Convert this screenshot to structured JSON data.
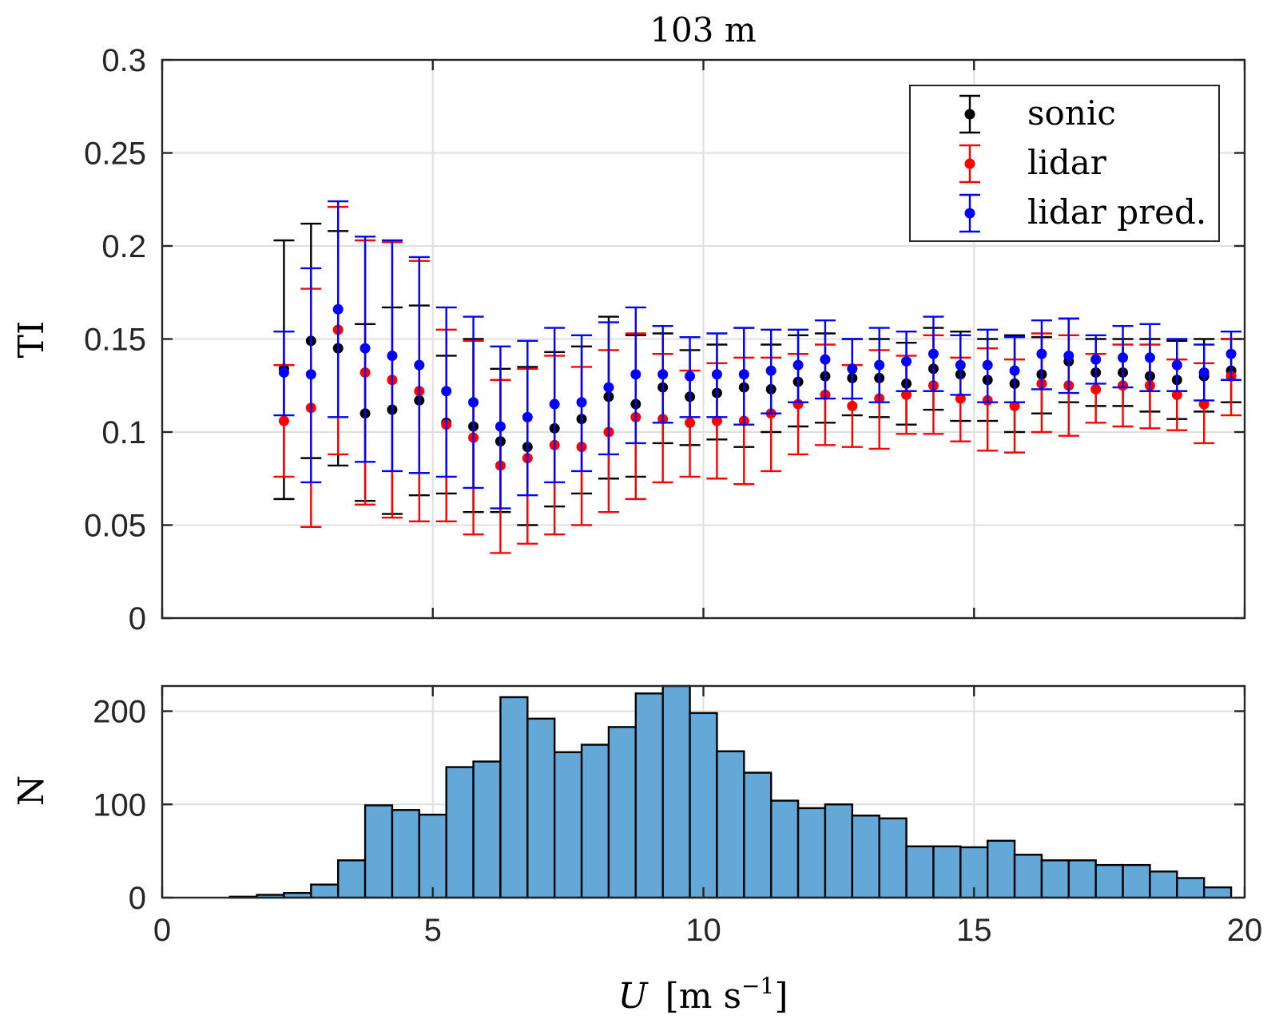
{
  "chart_data": [
    {
      "type": "scatter",
      "subtype": "errorbar",
      "title": "103 m",
      "xlabel": "",
      "ylabel": "TI",
      "xlim": [
        0,
        20
      ],
      "ylim": [
        0,
        0.3
      ],
      "xticks": [
        0,
        5,
        10,
        15,
        20
      ],
      "yticks": [
        0,
        0.05,
        0.1,
        0.15,
        0.2,
        0.25,
        0.3
      ],
      "ytick_labels": [
        "0",
        "0.05",
        "0.1",
        "0.15",
        "0.2",
        "0.25",
        "0.3"
      ],
      "grid": true,
      "legend_position": "top-right",
      "x": [
        2.25,
        2.75,
        3.25,
        3.75,
        4.25,
        4.75,
        5.25,
        5.75,
        6.25,
        6.75,
        7.25,
        7.75,
        8.25,
        8.75,
        9.25,
        9.75,
        10.25,
        10.75,
        11.25,
        11.75,
        12.25,
        12.75,
        13.25,
        13.75,
        14.25,
        14.75,
        15.25,
        15.75,
        16.25,
        16.75,
        17.25,
        17.75,
        18.25,
        18.75,
        19.25,
        19.75
      ],
      "series": [
        {
          "name": "sonic",
          "color": "#000000",
          "values": [
            0.134,
            0.149,
            0.145,
            0.11,
            0.112,
            0.117,
            0.105,
            0.103,
            0.095,
            0.092,
            0.102,
            0.107,
            0.119,
            0.115,
            0.124,
            0.119,
            0.121,
            0.124,
            0.123,
            0.127,
            0.13,
            0.129,
            0.129,
            0.126,
            0.134,
            0.131,
            0.128,
            0.126,
            0.131,
            0.138,
            0.132,
            0.132,
            0.13,
            0.128,
            0.13,
            0.133
          ],
          "upper": [
            0.203,
            0.212,
            0.208,
            0.158,
            0.167,
            0.168,
            0.141,
            0.15,
            0.134,
            0.135,
            0.143,
            0.146,
            0.162,
            0.152,
            0.153,
            0.144,
            0.147,
            0.156,
            0.147,
            0.152,
            0.153,
            0.15,
            0.15,
            0.148,
            0.156,
            0.154,
            0.15,
            0.152,
            0.151,
            0.161,
            0.15,
            0.15,
            0.15,
            0.149,
            0.15,
            0.15
          ],
          "lower": [
            0.064,
            0.086,
            0.082,
            0.063,
            0.056,
            0.066,
            0.067,
            0.057,
            0.057,
            0.05,
            0.06,
            0.067,
            0.075,
            0.076,
            0.094,
            0.093,
            0.096,
            0.092,
            0.1,
            0.103,
            0.105,
            0.109,
            0.108,
            0.104,
            0.112,
            0.106,
            0.106,
            0.1,
            0.11,
            0.116,
            0.114,
            0.114,
            0.111,
            0.107,
            0.111,
            0.116
          ]
        },
        {
          "name": "lidar",
          "color": "#ff0000",
          "values": [
            0.106,
            0.113,
            0.155,
            0.132,
            0.128,
            0.122,
            0.104,
            0.097,
            0.082,
            0.086,
            0.093,
            0.092,
            0.1,
            0.108,
            0.107,
            0.105,
            0.106,
            0.106,
            0.11,
            0.115,
            0.12,
            0.114,
            0.118,
            0.12,
            0.125,
            0.118,
            0.117,
            0.114,
            0.126,
            0.125,
            0.123,
            0.125,
            0.125,
            0.12,
            0.115,
            0.13
          ],
          "upper": [
            0.136,
            0.177,
            0.221,
            0.203,
            0.202,
            0.192,
            0.155,
            0.149,
            0.128,
            0.134,
            0.141,
            0.135,
            0.144,
            0.153,
            0.142,
            0.133,
            0.137,
            0.14,
            0.14,
            0.142,
            0.147,
            0.136,
            0.144,
            0.141,
            0.152,
            0.14,
            0.145,
            0.139,
            0.153,
            0.152,
            0.142,
            0.147,
            0.147,
            0.139,
            0.137,
            0.15
          ],
          "lower": [
            0.076,
            0.049,
            0.088,
            0.061,
            0.054,
            0.052,
            0.052,
            0.045,
            0.035,
            0.04,
            0.045,
            0.05,
            0.057,
            0.064,
            0.073,
            0.076,
            0.075,
            0.072,
            0.079,
            0.088,
            0.093,
            0.092,
            0.091,
            0.099,
            0.099,
            0.095,
            0.09,
            0.089,
            0.1,
            0.098,
            0.105,
            0.103,
            0.102,
            0.101,
            0.094,
            0.109
          ]
        },
        {
          "name": "lidar pred.",
          "color": "#0000ff",
          "values": [
            0.132,
            0.131,
            0.166,
            0.145,
            0.141,
            0.136,
            0.122,
            0.116,
            0.103,
            0.108,
            0.115,
            0.116,
            0.124,
            0.131,
            0.131,
            0.13,
            0.131,
            0.131,
            0.133,
            0.136,
            0.139,
            0.134,
            0.136,
            0.138,
            0.142,
            0.136,
            0.136,
            0.133,
            0.142,
            0.141,
            0.139,
            0.14,
            0.14,
            0.136,
            0.132,
            0.142
          ],
          "upper": [
            0.154,
            0.188,
            0.224,
            0.205,
            0.203,
            0.194,
            0.167,
            0.162,
            0.146,
            0.149,
            0.156,
            0.152,
            0.159,
            0.167,
            0.157,
            0.151,
            0.153,
            0.156,
            0.155,
            0.155,
            0.16,
            0.15,
            0.156,
            0.154,
            0.162,
            0.152,
            0.155,
            0.151,
            0.16,
            0.161,
            0.152,
            0.157,
            0.158,
            0.15,
            0.147,
            0.154
          ],
          "lower": [
            0.109,
            0.073,
            0.108,
            0.084,
            0.079,
            0.078,
            0.076,
            0.07,
            0.059,
            0.066,
            0.073,
            0.079,
            0.088,
            0.094,
            0.105,
            0.108,
            0.108,
            0.104,
            0.11,
            0.116,
            0.118,
            0.118,
            0.116,
            0.122,
            0.122,
            0.12,
            0.116,
            0.116,
            0.123,
            0.121,
            0.126,
            0.124,
            0.122,
            0.122,
            0.117,
            0.128
          ]
        }
      ]
    },
    {
      "type": "bar",
      "subtype": "histogram",
      "title": "",
      "xlabel": "U [m s^-1]",
      "ylabel": "N",
      "xlim": [
        0,
        20
      ],
      "ylim": [
        0,
        227
      ],
      "xticks": [
        0,
        5,
        10,
        15,
        20
      ],
      "yticks": [
        0,
        100,
        200
      ],
      "grid": true,
      "bin_width": 0.5,
      "color": "#63a8d7",
      "bin_centers": [
        1.5,
        2.0,
        2.5,
        3.0,
        3.5,
        4.0,
        4.5,
        5.0,
        5.5,
        6.0,
        6.5,
        7.0,
        7.5,
        8.0,
        8.5,
        9.0,
        9.5,
        10.0,
        10.5,
        11.0,
        11.5,
        12.0,
        12.5,
        13.0,
        13.5,
        14.0,
        14.5,
        15.0,
        15.5,
        16.0,
        16.5,
        17.0,
        17.5,
        18.0,
        18.5,
        19.0,
        19.5
      ],
      "values": [
        1,
        3,
        5,
        14,
        40,
        99,
        94,
        89,
        140,
        146,
        215,
        192,
        156,
        164,
        183,
        219,
        227,
        198,
        157,
        134,
        104,
        96,
        100,
        88,
        85,
        55,
        55,
        54,
        61,
        46,
        40,
        40,
        35,
        35,
        28,
        21,
        11
      ]
    }
  ],
  "labels": {
    "title": "103 m",
    "ylabel_top": "TI",
    "ylabel_bottom": "N",
    "xlabel_var": "U",
    "xlabel_unit_open": "[m s",
    "xlabel_unit_sup": "−1",
    "xlabel_unit_close": "]"
  },
  "legend": [
    {
      "label": "sonic",
      "color": "#000000"
    },
    {
      "label": "lidar",
      "color": "#ff0000"
    },
    {
      "label": "lidar pred.",
      "color": "#0000ff"
    }
  ]
}
